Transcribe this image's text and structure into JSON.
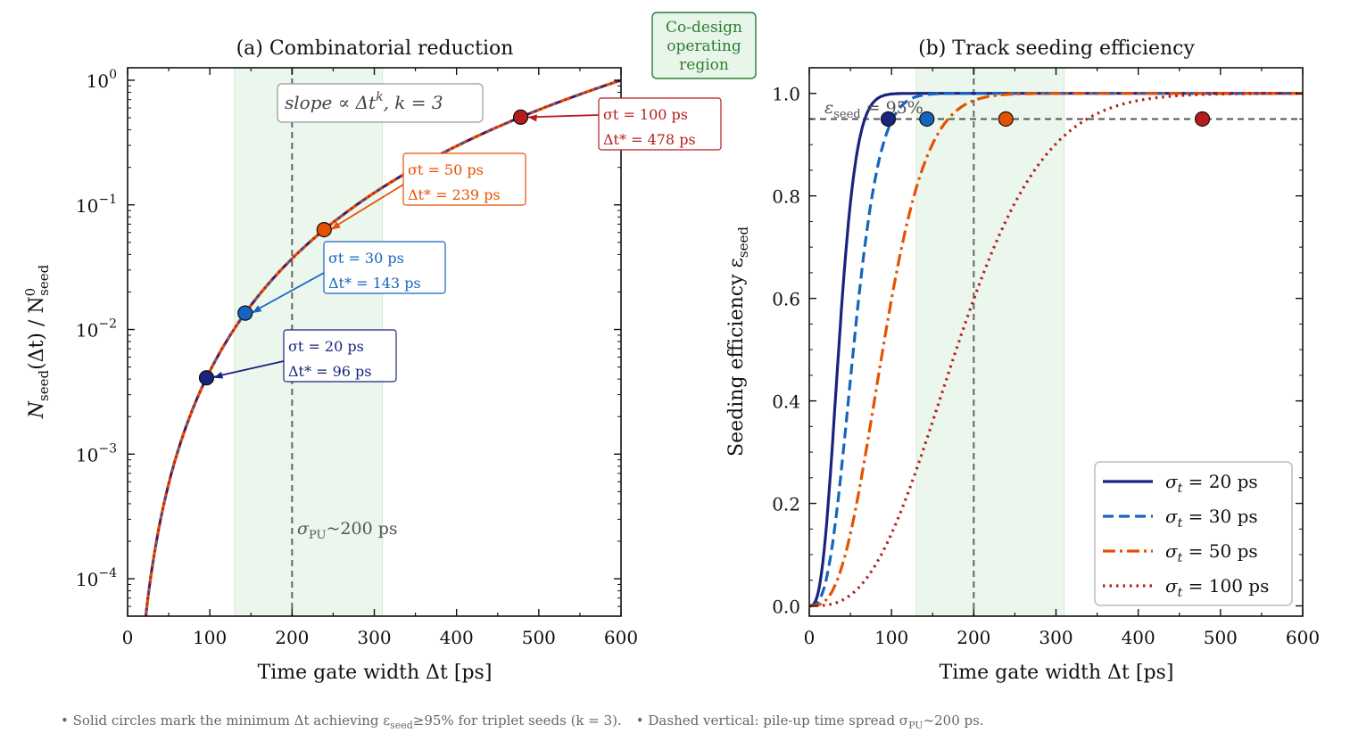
{
  "chart_data": [
    {
      "type": "line",
      "panel": "a",
      "title": "(a) Combinatorial reduction",
      "xlabel": "Time gate width Δt [ps]",
      "ylabel": "N_seed(Δt) / N⁰_seed",
      "ylabel_parts": {
        "main": "N",
        "sub": "seed",
        "mid": "(Δt) / N",
        "sup": "0",
        "sub2": "seed"
      },
      "xlim": [
        0,
        600
      ],
      "ylim_log10": [
        -4.3,
        0.1
      ],
      "x_ticks": [
        0,
        100,
        200,
        300,
        400,
        500,
        600
      ],
      "y_ticks_log10": [
        -4,
        -3,
        -2,
        -1,
        0
      ],
      "y_tick_base": "10",
      "y_tick_exponents": [
        "−4",
        "−3",
        "−2",
        "−1",
        "0"
      ],
      "scale": "log",
      "model": {
        "slope_label": "slope ∝ Δt^k, k = 3",
        "slope_text": "slope ∝ Δt",
        "k_text": "k",
        "k_eq": ",  k = 3",
        "k": 3,
        "x_ref": 600
      },
      "shaded_region": [
        130,
        310
      ],
      "vline": {
        "x": 200,
        "label_text": "~200 ps",
        "label_sigma": "σ",
        "label_sub": "PU"
      },
      "markers": [
        {
          "sigma_t": 20,
          "dt_star": 96,
          "color": "#1a237e",
          "label1": "σt = 20 ps",
          "label2": "Δt* = 96 ps"
        },
        {
          "sigma_t": 30,
          "dt_star": 143,
          "color": "#1565c0",
          "label1": "σt = 30 ps",
          "label2": "Δt* = 143 ps"
        },
        {
          "sigma_t": 50,
          "dt_star": 239,
          "color": "#e65100",
          "label1": "σt = 50 ps",
          "label2": "Δt* = 239 ps"
        },
        {
          "sigma_t": 100,
          "dt_star": 478,
          "color": "#b71c1c",
          "label1": "σt = 100 ps",
          "label2": "Δt* = 478 ps"
        }
      ]
    },
    {
      "type": "line",
      "panel": "b",
      "title": "(b) Track seeding efficiency",
      "xlabel": "Time gate width Δt [ps]",
      "ylabel": "Seeding efficiency ε_seed",
      "ylabel_main": "Seeding efficiency ε",
      "ylabel_sub": "seed",
      "xlim": [
        0,
        600
      ],
      "ylim": [
        -0.02,
        1.05
      ],
      "x_ticks": [
        0,
        100,
        200,
        300,
        400,
        500,
        600
      ],
      "y_ticks": [
        0.0,
        0.2,
        0.4,
        0.6,
        0.8,
        1.0
      ],
      "y_tick_labels": [
        "0.0",
        "0.2",
        "0.4",
        "0.6",
        "0.8",
        "1.0"
      ],
      "shaded_region": [
        130,
        310
      ],
      "hline": {
        "y": 0.95,
        "label": "ε_seed = 95%",
        "label_main": "ε",
        "label_sub": "seed",
        "label_rest": " = 95%"
      },
      "vline": {
        "x": 200
      },
      "series": [
        {
          "name": "σt = 20 ps",
          "sigma_t": 20,
          "style": "solid",
          "color": "#1a237e",
          "threshold_dt": 96
        },
        {
          "name": "σt = 30 ps",
          "sigma_t": 30,
          "style": "dashed",
          "color": "#1565c0",
          "threshold_dt": 143
        },
        {
          "name": "σt = 50 ps",
          "sigma_t": 50,
          "style": "dashdot",
          "color": "#e65100",
          "threshold_dt": 239
        },
        {
          "name": "σt = 100 ps",
          "sigma_t": 100,
          "style": "dotted",
          "color": "#b71c1c",
          "threshold_dt": 478
        }
      ],
      "legend_position": "bottom-right",
      "legend_prefix": "σ",
      "legend_sub": "t",
      "legend_values": [
        "= 20 ps",
        "= 30 ps",
        "= 50 ps",
        "= 100 ps"
      ]
    }
  ],
  "codesign_box": {
    "line1": "Co-design",
    "line2": "operating",
    "line3": "region"
  },
  "footnote": {
    "part1": "• Solid circles mark the minimum Δt achieving ε",
    "part1_sub": "seed",
    "part1_rest": "≥95% for triplet seeds (k = 3).",
    "part2": "• Dashed vertical: pile-up time spread σ",
    "part2_sub": "PU",
    "part2_rest": "~200 ps."
  }
}
